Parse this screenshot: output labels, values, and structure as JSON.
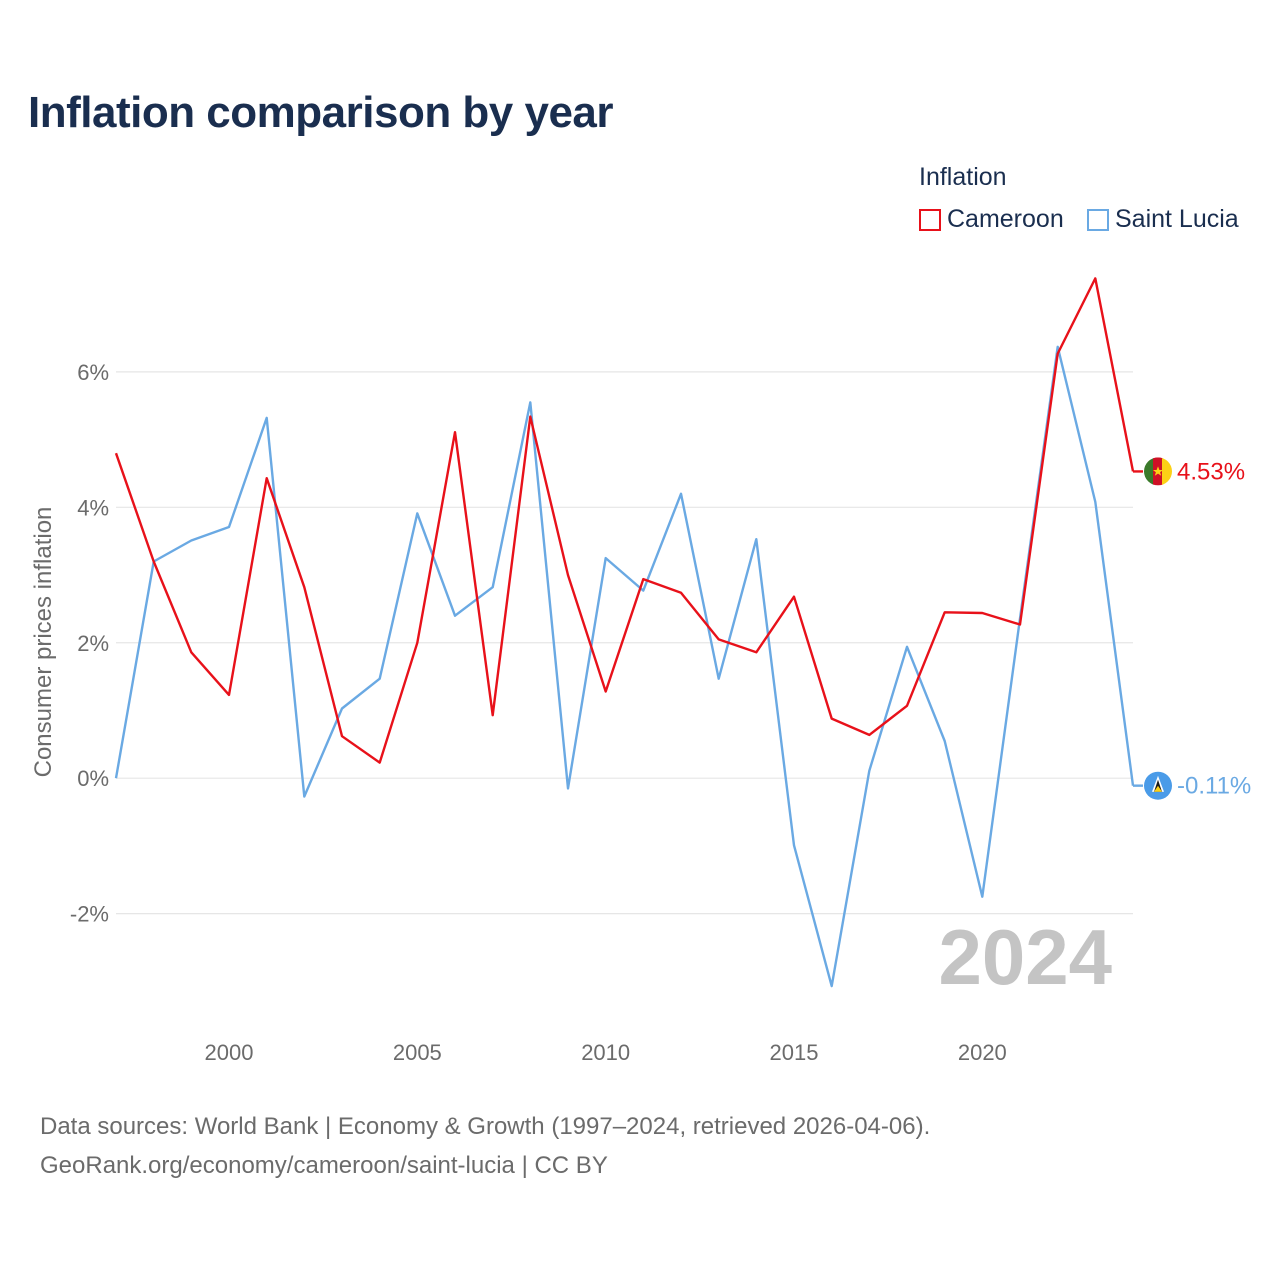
{
  "title": "Inflation comparison by year",
  "legend": {
    "title": "Inflation",
    "items": [
      {
        "label": "Cameroon",
        "color": "#e8111a"
      },
      {
        "label": "Saint Lucia",
        "color": "#6aa9e3"
      }
    ]
  },
  "current_year_label": "2024",
  "end_labels": {
    "cameroon": "4.53%",
    "saint_lucia": "-0.11%"
  },
  "footer": {
    "line1": "Data sources: World Bank | Economy & Growth (1997–2024, retrieved 2026-04-06).",
    "line2": "GeoRank.org/economy/cameroon/saint-lucia | CC BY"
  },
  "chart_data": {
    "type": "line",
    "title": "Inflation comparison by year",
    "xlabel": "",
    "ylabel": "Consumer prices inflation",
    "x": [
      1997,
      1998,
      1999,
      2000,
      2001,
      2002,
      2003,
      2004,
      2005,
      2006,
      2007,
      2008,
      2009,
      2010,
      2011,
      2012,
      2013,
      2014,
      2015,
      2016,
      2017,
      2018,
      2019,
      2020,
      2021,
      2022,
      2023,
      2024
    ],
    "xlim": [
      1997,
      2024
    ],
    "ylim": [
      -3.6,
      7.8
    ],
    "xticks": [
      2000,
      2005,
      2010,
      2015,
      2020
    ],
    "xtick_labels": [
      "2000",
      "2005",
      "2010",
      "2015",
      "2020"
    ],
    "yticks": [
      -2,
      0,
      2,
      4,
      6
    ],
    "ytick_labels": [
      "-2%",
      "0%",
      "2%",
      "4%",
      "6%"
    ],
    "grid": true,
    "legend_position": "top-right",
    "series": [
      {
        "name": "Cameroon",
        "color": "#e8111a",
        "values": [
          4.8,
          3.2,
          1.86,
          1.23,
          4.43,
          2.82,
          0.62,
          0.23,
          2.0,
          5.11,
          0.93,
          5.34,
          3.0,
          1.28,
          2.94,
          2.74,
          2.05,
          1.86,
          2.68,
          0.88,
          0.64,
          1.07,
          2.45,
          2.44,
          2.27,
          6.27,
          7.38,
          4.53
        ]
      },
      {
        "name": "Saint Lucia",
        "color": "#6aa9e3",
        "values": [
          0.0,
          3.2,
          3.51,
          3.71,
          5.32,
          -0.27,
          1.03,
          1.47,
          3.91,
          2.4,
          2.82,
          5.55,
          -0.15,
          3.25,
          2.77,
          4.2,
          1.47,
          3.53,
          -0.99,
          -3.07,
          0.11,
          1.94,
          0.55,
          -1.75,
          2.36,
          6.37,
          4.08,
          -0.11
        ]
      }
    ]
  }
}
